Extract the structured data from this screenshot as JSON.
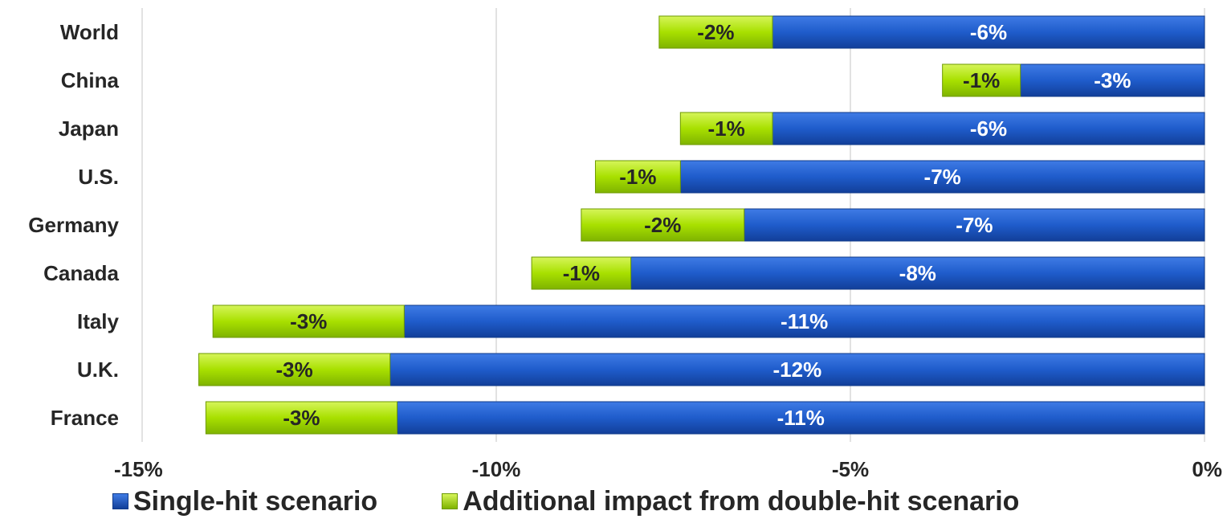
{
  "chart_data": {
    "type": "bar",
    "orientation": "horizontal",
    "stacked": true,
    "categories": [
      "World",
      "China",
      "Japan",
      "U.S.",
      "Germany",
      "Canada",
      "Italy",
      "U.K.",
      "France"
    ],
    "series": [
      {
        "name": "Single-hit scenario",
        "color": "#1F5CCB",
        "values": [
          -6.1,
          -2.6,
          -6.1,
          -7.4,
          -6.5,
          -8.1,
          -11.3,
          -11.5,
          -11.4
        ],
        "labels": [
          "-6%",
          "-3%",
          "-6%",
          "-7%",
          "-7%",
          "-8%",
          "-11%",
          "-12%",
          "-11%"
        ]
      },
      {
        "name": "Additional impact from double-hit scenario",
        "color": "#A8E000",
        "values": [
          -1.6,
          -1.1,
          -1.3,
          -1.2,
          -2.3,
          -1.4,
          -2.7,
          -2.7,
          -2.7
        ],
        "labels": [
          "-2%",
          "-1%",
          "-1%",
          "-1%",
          "-2%",
          "-1%",
          "-3%",
          "-3%",
          "-3%"
        ]
      }
    ],
    "xlim": [
      -15,
      0
    ],
    "xticks": [
      -15,
      -10,
      -5,
      0
    ],
    "xtick_labels": [
      "-15%",
      "-10%",
      "-5%",
      "0%"
    ],
    "grid": true,
    "legend_position": "bottom"
  }
}
